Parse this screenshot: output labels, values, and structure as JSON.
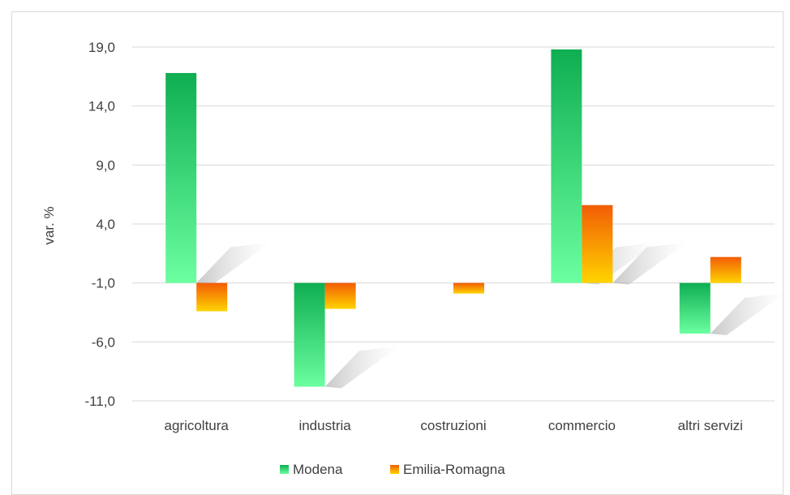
{
  "chart_data": {
    "type": "bar",
    "title": "",
    "xlabel": "",
    "ylabel": "var. %",
    "categories": [
      "agricoltura",
      "industria",
      "costruzioni",
      "commercio",
      "altri servizi"
    ],
    "series": [
      {
        "name": "Modena",
        "values": [
          16.8,
          -9.8,
          null,
          18.8,
          -5.3
        ],
        "color": "#22c55e"
      },
      {
        "name": "Emilia-Romagna",
        "values": [
          -3.4,
          -3.2,
          -1.9,
          5.6,
          1.2
        ],
        "color": "#f59e0b"
      }
    ],
    "yticks": [
      "19,0",
      "14,0",
      "9,0",
      "4,0",
      "-1,0",
      "-6,0",
      "-11,0"
    ],
    "ylim": [
      -11,
      19
    ],
    "grid": true,
    "legend_position": "bottom"
  }
}
